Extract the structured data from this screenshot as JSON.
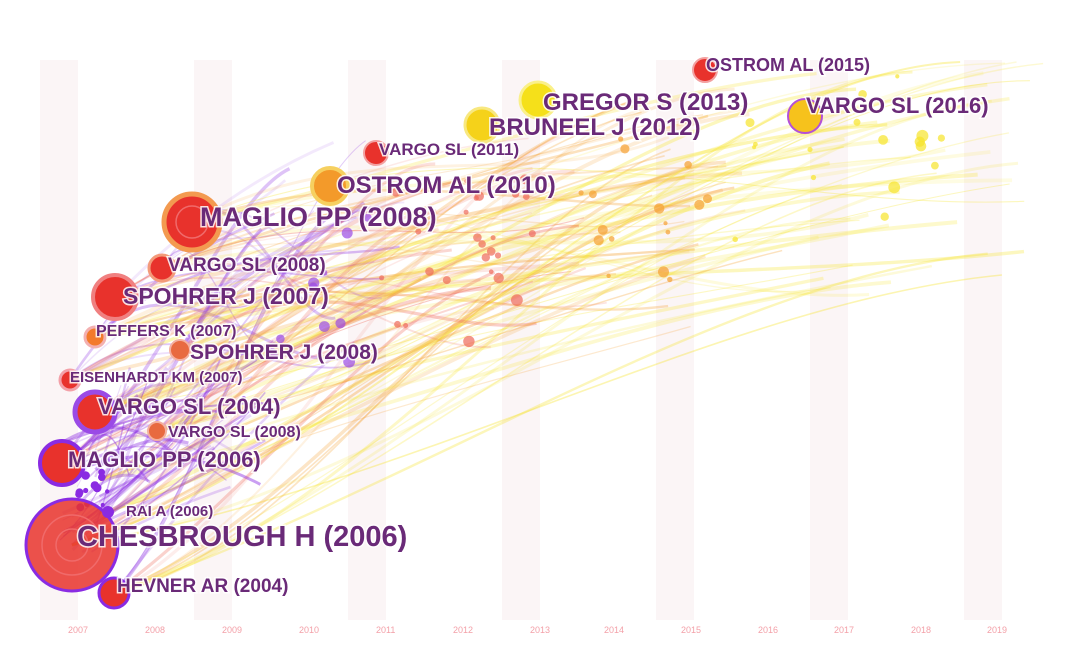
{
  "timeline": {
    "years": [
      "2007",
      "2008",
      "2009",
      "2010",
      "2011",
      "2012",
      "2013",
      "2014",
      "2015",
      "2016",
      "2017",
      "2018",
      "2019"
    ]
  },
  "nodes": [
    {
      "id": "ostrom-al-2015",
      "label": "OSTROM AL (2015)",
      "color": "#e8322c"
    },
    {
      "id": "gregor-s-2013",
      "label": "GREGOR S (2013)",
      "color": "#f5e01a"
    },
    {
      "id": "vargo-sl-2016",
      "label": "VARGO SL (2016)",
      "color": "#f6c21c"
    },
    {
      "id": "bruneel-j-2012",
      "label": "BRUNEEL J (2012)",
      "color": "#f5d21a"
    },
    {
      "id": "vargo-sl-2011",
      "label": "VARGO SL (2011)",
      "color": "#e8322c"
    },
    {
      "id": "ostrom-al-2010",
      "label": "OSTROM AL (2010)",
      "color": "#f3a030"
    },
    {
      "id": "maglio-pp-2008",
      "label": "MAGLIO PP (2008)",
      "color": "#e8322c"
    },
    {
      "id": "vargo-sl-2008a",
      "label": "VARGO SL (2008)",
      "color": "#e8322c"
    },
    {
      "id": "spohrer-j-2007",
      "label": "SPOHRER J (2007)",
      "color": "#e8322c"
    },
    {
      "id": "peffers-k-2007",
      "label": "PEFFERS K (2007)",
      "color": "#e85a2c"
    },
    {
      "id": "spohrer-j-2008",
      "label": "SPOHRER J (2008)",
      "color": "#e86a40"
    },
    {
      "id": "eisenhardt-km-2007",
      "label": "EISENHARDT KM (2007)",
      "color": "#e8322c"
    },
    {
      "id": "vargo-sl-2004",
      "label": "VARGO SL (2004)",
      "color": "#e8322c"
    },
    {
      "id": "vargo-sl-2008b",
      "label": "VARGO SL (2008)",
      "color": "#e86a40"
    },
    {
      "id": "maglio-pp-2006",
      "label": "MAGLIO PP (2006)",
      "color": "#e8322c"
    },
    {
      "id": "rai-a-2006",
      "label": "RAI A (2006)",
      "color": "#8a2be2"
    },
    {
      "id": "chesbrough-h-2006",
      "label": "CHESBROUGH H (2006)",
      "color": "#e8322c"
    },
    {
      "id": "hevner-ar-2004",
      "label": "HEVNER AR (2004)",
      "color": "#e8322c"
    }
  ],
  "colors": {
    "label": "#6a2a78",
    "purple": "#8a2be2",
    "red": "#e8322c",
    "orange": "#f39a2a",
    "yellow": "#f6e81c",
    "year": "#f3a0a8"
  }
}
